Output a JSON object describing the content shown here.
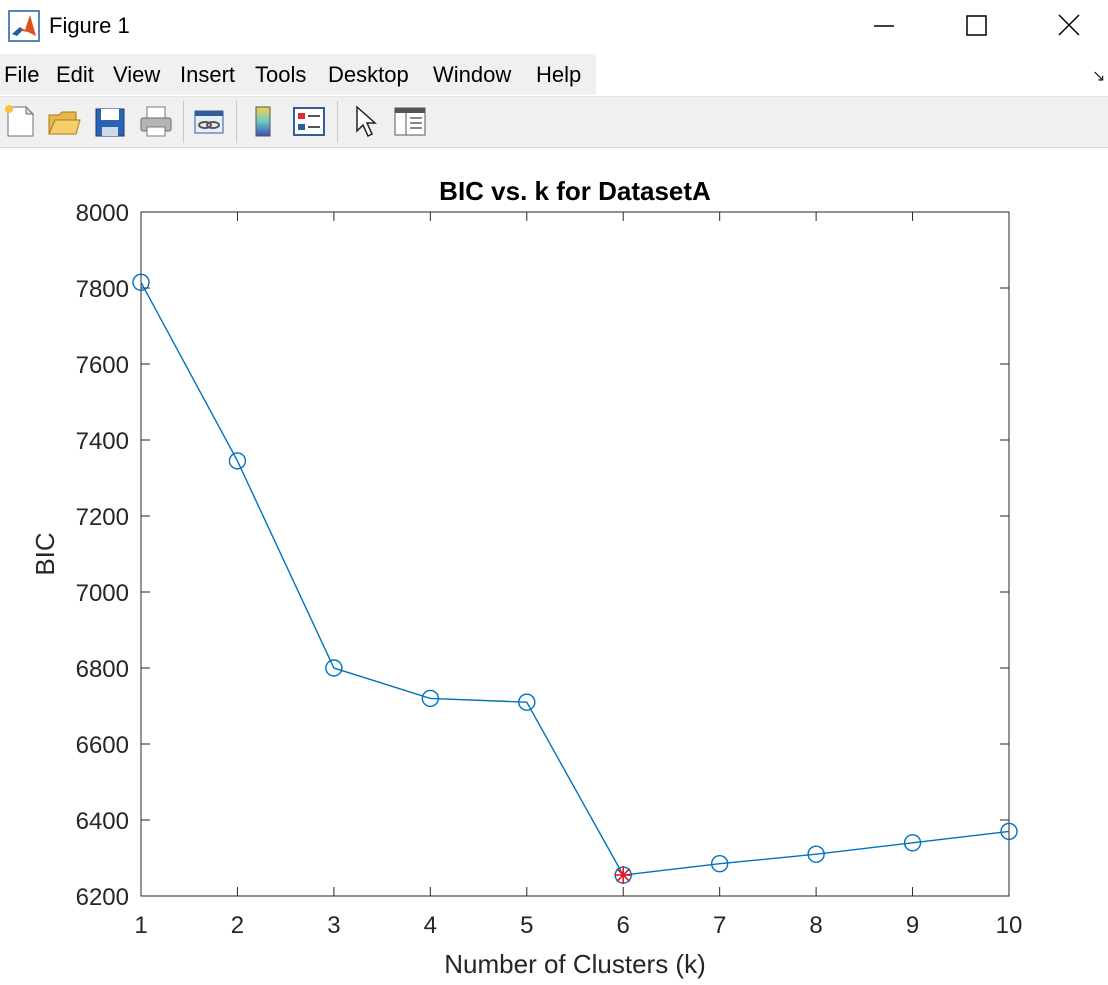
{
  "window": {
    "title": "Figure 1"
  },
  "menu": [
    "File",
    "Edit",
    "View",
    "Insert",
    "Tools",
    "Desktop",
    "Window",
    "Help"
  ],
  "toolbar_icons": [
    "new-figure-icon",
    "open-file-icon",
    "save-icon",
    "print-icon",
    "link-plot-icon",
    "colorbar-icon",
    "legend-icon",
    "select-pointer-icon",
    "property-inspector-icon"
  ],
  "chart_data": {
    "type": "line",
    "title": "BIC vs. k for DatasetA",
    "xlabel": "Number of Clusters (k)",
    "ylabel": "BIC",
    "x": [
      1,
      2,
      3,
      4,
      5,
      6,
      7,
      8,
      9,
      10
    ],
    "series": [
      {
        "values": [
          7815,
          7345,
          6800,
          6720,
          6710,
          6255,
          6285,
          6310,
          6340,
          6370
        ],
        "color": "#0072bd",
        "marker": "circle"
      }
    ],
    "highlight": {
      "x": 6,
      "y": 6255,
      "color": "#e4181c",
      "marker": "star"
    },
    "xlim": [
      1,
      10
    ],
    "ylim": [
      6200,
      8000
    ],
    "xticks": [
      1,
      2,
      3,
      4,
      5,
      6,
      7,
      8,
      9,
      10
    ],
    "yticks": [
      6200,
      6400,
      6600,
      6800,
      7000,
      7200,
      7400,
      7600,
      7800,
      8000
    ],
    "grid": false
  }
}
